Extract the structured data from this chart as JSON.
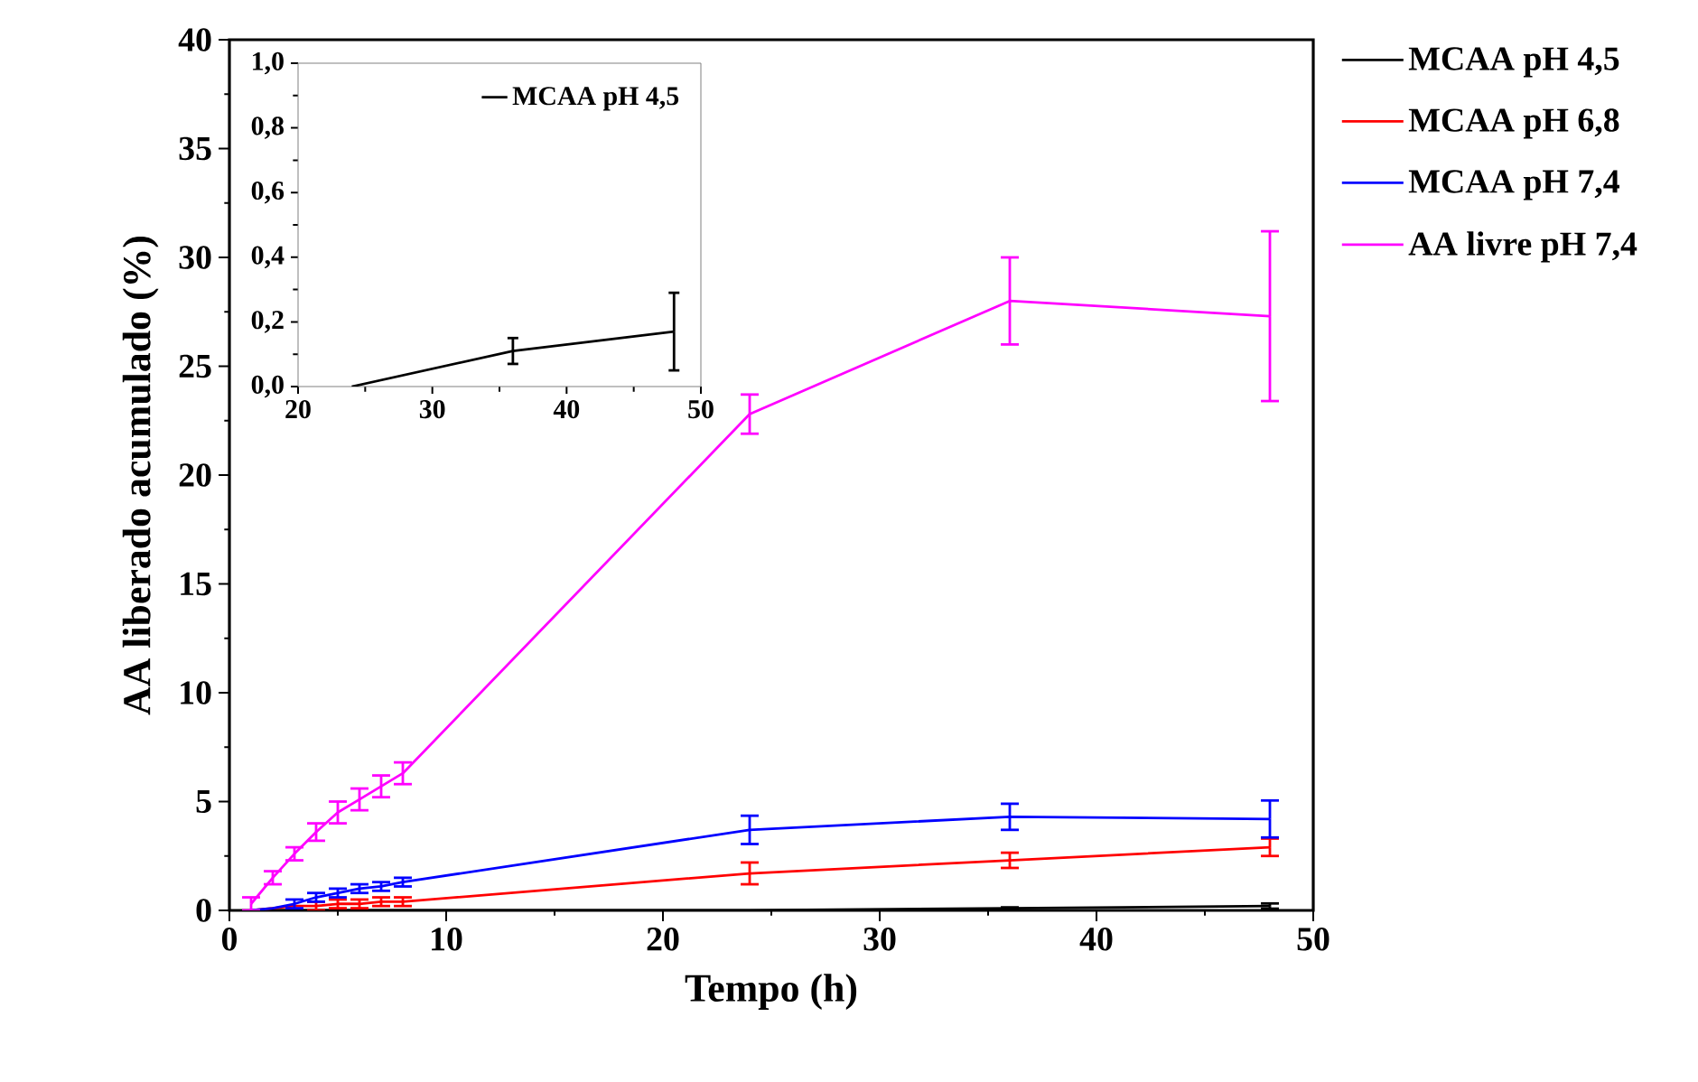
{
  "chart_data": [
    {
      "type": "line",
      "xlabel": "Tempo (h)",
      "ylabel": "AA liberado acumulado (%)",
      "xlim": [
        0,
        50
      ],
      "xticks": [
        0,
        10,
        20,
        30,
        40,
        50
      ],
      "ylim": [
        0,
        40
      ],
      "yticks": [
        0,
        5,
        10,
        15,
        20,
        25,
        30,
        35,
        40
      ],
      "legend": "right",
      "grid": false,
      "marker": "none",
      "line_style": "solid",
      "series": [
        {
          "name": "MCAA pH 4,5",
          "color": "#000000",
          "x": [
            1,
            2,
            3,
            4,
            5,
            6,
            7,
            8,
            24,
            36,
            48
          ],
          "values": [
            0,
            0,
            0,
            0,
            0,
            0,
            0,
            0,
            0,
            0.1,
            0.2
          ],
          "errors": [
            null,
            null,
            null,
            null,
            null,
            null,
            null,
            null,
            null,
            0.04,
            0.12
          ]
        },
        {
          "name": "MCAA pH 6,8",
          "color": "#ff0000",
          "x": [
            1,
            2,
            3,
            4,
            5,
            6,
            7,
            8,
            24,
            36,
            48
          ],
          "values": [
            0,
            0.1,
            0.2,
            0.2,
            0.3,
            0.3,
            0.4,
            0.4,
            1.7,
            2.3,
            2.9
          ],
          "errors": [
            null,
            null,
            null,
            0.2,
            0.2,
            0.2,
            0.2,
            0.2,
            0.5,
            0.35,
            0.4
          ]
        },
        {
          "name": "MCAA pH 7,4",
          "color": "#0000ff",
          "x": [
            1,
            2,
            3,
            4,
            5,
            6,
            7,
            8,
            24,
            36,
            48
          ],
          "values": [
            0,
            0.1,
            0.3,
            0.6,
            0.8,
            1.0,
            1.1,
            1.3,
            3.7,
            4.3,
            4.2
          ],
          "errors": [
            null,
            null,
            0.2,
            0.2,
            0.2,
            0.2,
            0.2,
            0.2,
            0.65,
            0.6,
            0.85
          ]
        },
        {
          "name": "AA livre pH 7,4",
          "color": "#ff00ff",
          "x": [
            1,
            2,
            3,
            4,
            5,
            6,
            7,
            8,
            24,
            36,
            48
          ],
          "values": [
            0.3,
            1.5,
            2.6,
            3.6,
            4.5,
            5.1,
            5.7,
            6.3,
            22.8,
            28.0,
            27.3
          ],
          "errors": [
            0.3,
            0.3,
            0.3,
            0.4,
            0.5,
            0.5,
            0.5,
            0.5,
            0.9,
            2.0,
            3.9
          ]
        }
      ]
    },
    {
      "type": "line",
      "xlim": [
        20,
        50
      ],
      "xticks": [
        20,
        30,
        40,
        50
      ],
      "ylim": [
        0,
        1
      ],
      "yticks": [
        {
          "value": 0,
          "label": "0,0"
        },
        {
          "value": 0.2,
          "label": "0,2"
        },
        {
          "value": 0.4,
          "label": "0,4"
        },
        {
          "value": 0.6,
          "label": "0,6"
        },
        {
          "value": 0.8,
          "label": "0,8"
        },
        {
          "value": 1,
          "label": "1,0"
        }
      ],
      "legend": "top right",
      "grid": false,
      "marker": "none",
      "line_style": "solid",
      "series": [
        {
          "name": "MCAA pH 4,5",
          "color": "#000000",
          "x": [
            24,
            36,
            48
          ],
          "values": [
            0,
            0.11,
            0.17
          ],
          "errors": [
            null,
            0.04,
            0.12
          ]
        }
      ]
    }
  ]
}
